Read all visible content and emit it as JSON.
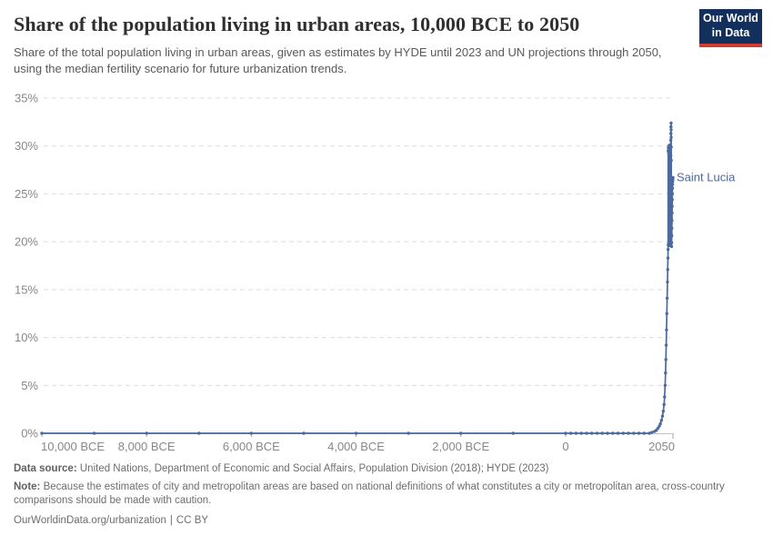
{
  "header": {
    "title": "Share of the population living in urban areas, 10,000 BCE to 2050",
    "subtitle": "Share of the total population living in urban areas, given as estimates by HYDE until 2023 and UN projections through 2050, using the median fertility scenario for future urbanization trends.",
    "logo": {
      "line1": "Our World",
      "line2": "in Data"
    }
  },
  "colors": {
    "line": "#4C6A9C",
    "grid": "#dcdcdc",
    "axis_line": "#c2c2c2",
    "tick": "#9fa6ad",
    "axis_text": "#878787",
    "logo_bg": "#12305b",
    "logo_accent": "#cf3c30"
  },
  "chart_data": {
    "type": "line",
    "title": "Share of the population living in urban areas, 10,000 BCE to 2050",
    "unit": "%",
    "grid": true,
    "x_range": [
      -10000,
      2050
    ],
    "y_range": [
      0,
      35
    ],
    "y_ticks": {
      "values": [
        0,
        5,
        10,
        15,
        20,
        25,
        30,
        35
      ],
      "suffix": "%"
    },
    "x_ticks": [
      {
        "value": -10000,
        "label": "10,000 BCE"
      },
      {
        "value": -8000,
        "label": "8,000 BCE"
      },
      {
        "value": -6000,
        "label": "6,000 BCE"
      },
      {
        "value": -4000,
        "label": "4,000 BCE"
      },
      {
        "value": -2000,
        "label": "2,000 BCE"
      },
      {
        "value": 0,
        "label": "0"
      },
      {
        "value": 2050,
        "label": "2050"
      }
    ],
    "series": [
      {
        "name": "Saint Lucia",
        "color": "#4C6A9C",
        "points": [
          [
            -10000,
            0
          ],
          [
            -9000,
            0
          ],
          [
            -8000,
            0
          ],
          [
            -7000,
            0
          ],
          [
            -6000,
            0
          ],
          [
            -5000,
            0
          ],
          [
            -4000,
            0
          ],
          [
            -3000,
            0
          ],
          [
            -2000,
            0
          ],
          [
            -1000,
            0
          ],
          [
            0,
            0
          ],
          [
            100,
            0
          ],
          [
            200,
            0
          ],
          [
            300,
            0
          ],
          [
            400,
            0
          ],
          [
            500,
            0
          ],
          [
            600,
            0
          ],
          [
            700,
            0
          ],
          [
            800,
            0
          ],
          [
            900,
            0
          ],
          [
            1000,
            0
          ],
          [
            1100,
            0
          ],
          [
            1200,
            0
          ],
          [
            1300,
            0
          ],
          [
            1400,
            0
          ],
          [
            1500,
            0
          ],
          [
            1600,
            0
          ],
          [
            1650,
            0.1
          ],
          [
            1700,
            0.2
          ],
          [
            1730,
            0.3
          ],
          [
            1760,
            0.5
          ],
          [
            1790,
            0.75
          ],
          [
            1810,
            1.0
          ],
          [
            1830,
            1.35
          ],
          [
            1850,
            1.8
          ],
          [
            1865,
            2.3
          ],
          [
            1880,
            3.0
          ],
          [
            1890,
            3.8
          ],
          [
            1900,
            5.0
          ],
          [
            1908,
            6.3
          ],
          [
            1915,
            7.7
          ],
          [
            1921,
            9.2
          ],
          [
            1927,
            10.8
          ],
          [
            1933,
            12.5
          ],
          [
            1939,
            14.1
          ],
          [
            1945,
            15.8
          ],
          [
            1950,
            17.1
          ],
          [
            1954,
            18.3
          ],
          [
            1957,
            19.2
          ],
          [
            1959,
            29.5
          ],
          [
            1961,
            19.7
          ],
          [
            1963,
            29.8
          ],
          [
            1965,
            19.6
          ],
          [
            1967,
            29.3
          ],
          [
            1969,
            19.8
          ],
          [
            1971,
            30.0
          ],
          [
            1973,
            19.6
          ],
          [
            1975,
            29.6
          ],
          [
            1977,
            19.9
          ],
          [
            1979,
            29.9
          ],
          [
            1981,
            19.7
          ],
          [
            1983,
            29.4
          ],
          [
            1985,
            19.6
          ],
          [
            1987,
            30.1
          ],
          [
            1989,
            19.8
          ],
          [
            1991,
            29.7
          ],
          [
            1993,
            19.6
          ],
          [
            1995,
            29.8
          ],
          [
            1997,
            19.7
          ],
          [
            1999,
            29.5
          ],
          [
            2001,
            19.8
          ],
          [
            2003,
            29.2
          ],
          [
            2005,
            19.6
          ],
          [
            2007,
            28.4
          ],
          [
            2008,
            30.6
          ],
          [
            2009,
            29.0
          ],
          [
            2010,
            31.3
          ],
          [
            2012,
            32.0
          ],
          [
            2014,
            32.4
          ],
          [
            2015,
            31.7
          ],
          [
            2016,
            30.9
          ],
          [
            2017,
            29.9
          ],
          [
            2018,
            28.5
          ],
          [
            2019,
            26.6
          ],
          [
            2020,
            24.5
          ],
          [
            2021,
            22.4
          ],
          [
            2022,
            20.7
          ],
          [
            2023,
            19.5
          ],
          [
            2025,
            19.9
          ],
          [
            2027,
            20.6
          ],
          [
            2029,
            21.4
          ],
          [
            2031,
            22.2
          ],
          [
            2033,
            23.0
          ],
          [
            2035,
            23.7
          ],
          [
            2037,
            24.4
          ],
          [
            2039,
            25.0
          ],
          [
            2041,
            25.6
          ],
          [
            2043,
            26.0
          ],
          [
            2045,
            26.3
          ],
          [
            2047,
            26.5
          ],
          [
            2049,
            26.6
          ],
          [
            2050,
            26.7
          ]
        ]
      }
    ]
  },
  "footer": {
    "datasource_label": "Data source:",
    "datasource_text": "United Nations, Department of Economic and Social Affairs, Population Division (2018); HYDE (2023)",
    "note_label": "Note:",
    "note_text": "Because the estimates of city and metropolitan areas are based on national definitions of what constitutes a city or metropolitan area, cross-country comparisons should be made with caution.",
    "citation_url": "OurWorldinData.org/urbanization",
    "separator": "|",
    "license": "CC BY"
  }
}
